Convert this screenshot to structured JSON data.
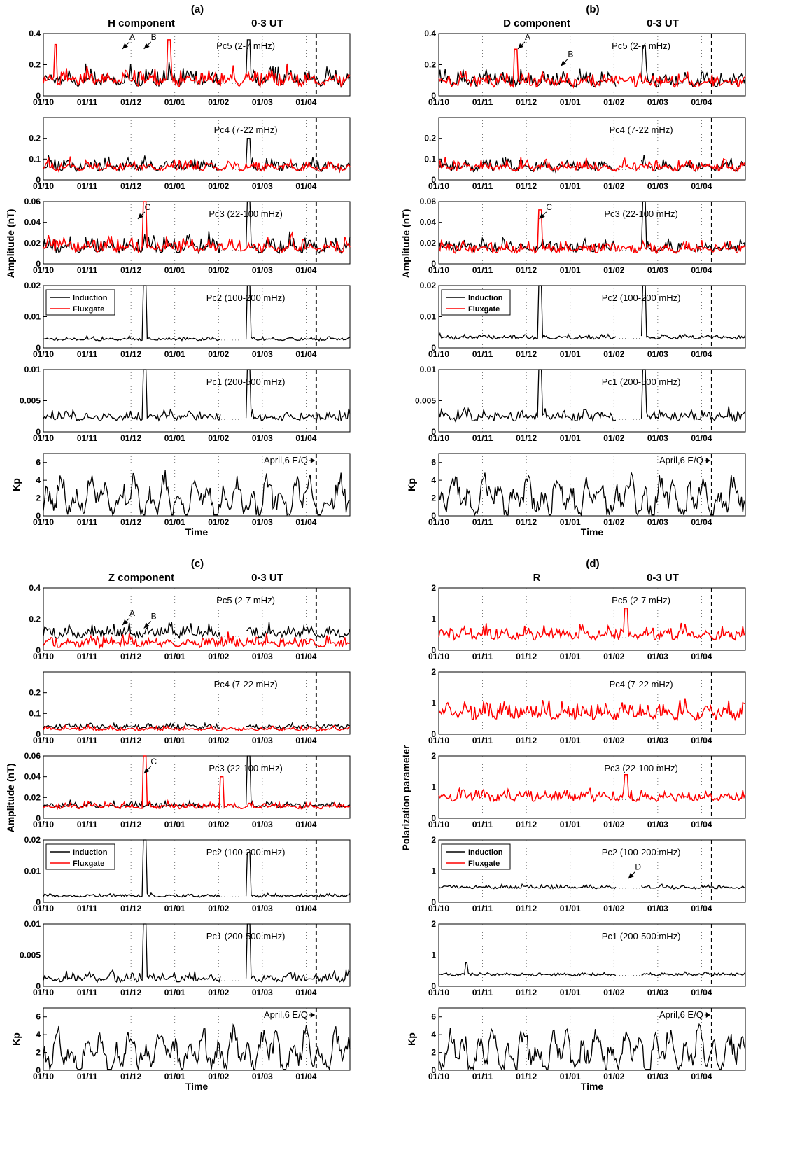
{
  "chart_data": {
    "type": "line",
    "dates": [
      "01/10",
      "01/11",
      "01/12",
      "01/01",
      "01/02",
      "01/03",
      "01/04"
    ],
    "legend": {
      "induction": "Induction",
      "fluxgate": "Fluxgate"
    },
    "colors": {
      "induction": "#000000",
      "fluxgate": "#ff0000"
    },
    "time_label": "Time",
    "eq_label": "April,6 E/Q",
    "panels": [
      {
        "letter": "(a)",
        "title": "H component",
        "ut": "0-3 UT",
        "amp_label": "Amplitude (nT)",
        "rows": [
          {
            "label": "Pc5 (2-7 mHz)",
            "ylim": [
              0,
              0.4
            ],
            "ticks": [
              "0",
              "0.2",
              "0.4"
            ],
            "tickvals": [
              0,
              0.2,
              0.4
            ],
            "base": 0.08,
            "var": 0.06,
            "flux": true,
            "fluxbase": 0.08,
            "peaks": [
              {
                "x": 0.04,
                "y": 0.33,
                "s": "f"
              },
              {
                "x": 0.41,
                "y": 0.36,
                "s": "f"
              },
              {
                "x": 0.67,
                "y": 0.36,
                "s": "b"
              }
            ],
            "ann": [
              {
                "t": "A",
                "x": 0.29,
                "y": 0.36
              },
              {
                "t": "B",
                "x": 0.36,
                "y": 0.36
              }
            ]
          },
          {
            "label": "Pc4 (7-22 mHz)",
            "ylim": [
              0,
              0.3
            ],
            "ticks": [
              "0",
              "0.1",
              "0.2"
            ],
            "tickvals": [
              0,
              0.1,
              0.2
            ],
            "base": 0.05,
            "var": 0.03,
            "flux": true,
            "fluxbase": 0.05,
            "peaks": [
              {
                "x": 0.67,
                "y": 0.2,
                "s": "b"
              }
            ],
            "ann": []
          },
          {
            "label": "Pc3 (22-100 mHz)",
            "ylim": [
              0,
              0.06
            ],
            "ticks": [
              "0",
              "0.02",
              "0.04",
              "0.06"
            ],
            "tickvals": [
              0,
              0.02,
              0.04,
              0.06
            ],
            "base": 0.013,
            "var": 0.008,
            "flux": true,
            "fluxbase": 0.013,
            "peaks": [
              {
                "x": 0.33,
                "y": 0.06,
                "s": "f"
              },
              {
                "x": 0.67,
                "y": 0.06,
                "s": "b"
              }
            ],
            "ann": [
              {
                "t": "C",
                "x": 0.34,
                "y": 0.052
              }
            ]
          },
          {
            "label": "Pc2 (100-200 mHz)",
            "ylim": [
              0,
              0.02
            ],
            "ticks": [
              "0",
              "0.01",
              "0.02"
            ],
            "tickvals": [
              0,
              0.01,
              0.02
            ],
            "base": 0.0025,
            "var": 0.0006,
            "flux": false,
            "fluxbase": 0,
            "legend": true,
            "peaks": [
              {
                "x": 0.33,
                "y": 0.02,
                "s": "b"
              },
              {
                "x": 0.67,
                "y": 0.02,
                "s": "b"
              }
            ],
            "ann": []
          },
          {
            "label": "Pc1 (200-500 mHz)",
            "ylim": [
              0,
              0.01
            ],
            "ticks": [
              "0",
              "0.005",
              "0.01"
            ],
            "tickvals": [
              0,
              0.005,
              0.01
            ],
            "base": 0.002,
            "var": 0.0008,
            "flux": false,
            "fluxbase": 0,
            "peaks": [
              {
                "x": 0.33,
                "y": 0.01,
                "s": "b"
              },
              {
                "x": 0.67,
                "y": 0.01,
                "s": "b"
              }
            ],
            "ann": []
          },
          {
            "label": "",
            "kp": true,
            "ylim": [
              0,
              7
            ],
            "ticks": [
              "0",
              "2",
              "4",
              "6"
            ],
            "tickvals": [
              0,
              2,
              4,
              6
            ],
            "base": 2,
            "var": 1.3,
            "flux": false,
            "fluxbase": 0,
            "peaks": [],
            "ann": []
          }
        ]
      },
      {
        "letter": "(b)",
        "title": "D component",
        "ut": "0-3 UT",
        "amp_label": "Amplitude (nT)",
        "rows": [
          {
            "label": "Pc5 (2-7 mHz)",
            "ylim": [
              0,
              0.4
            ],
            "ticks": [
              "0",
              "0.2",
              "0.4"
            ],
            "tickvals": [
              0,
              0.2,
              0.4
            ],
            "base": 0.07,
            "var": 0.05,
            "flux": true,
            "fluxbase": 0.07,
            "peaks": [
              {
                "x": 0.25,
                "y": 0.3,
                "s": "f"
              },
              {
                "x": 0.67,
                "y": 0.32,
                "s": "b"
              }
            ],
            "ann": [
              {
                "t": "A",
                "x": 0.29,
                "y": 0.36
              },
              {
                "t": "B",
                "x": 0.43,
                "y": 0.25
              }
            ]
          },
          {
            "label": "Pc4 (7-22 mHz)",
            "ylim": [
              0,
              0.3
            ],
            "ticks": [
              "0",
              "0.1",
              "0.2"
            ],
            "tickvals": [
              0,
              0.1,
              0.2
            ],
            "base": 0.05,
            "var": 0.03,
            "flux": true,
            "fluxbase": 0.05,
            "peaks": [],
            "ann": []
          },
          {
            "label": "Pc3 (22-100 mHz)",
            "ylim": [
              0,
              0.06
            ],
            "ticks": [
              "0",
              "0.02",
              "0.04",
              "0.06"
            ],
            "tickvals": [
              0,
              0.02,
              0.04,
              0.06
            ],
            "base": 0.013,
            "var": 0.006,
            "flux": true,
            "fluxbase": 0.012,
            "peaks": [
              {
                "x": 0.33,
                "y": 0.052,
                "s": "f"
              },
              {
                "x": 0.67,
                "y": 0.06,
                "s": "b"
              }
            ],
            "ann": [
              {
                "t": "C",
                "x": 0.36,
                "y": 0.052
              }
            ]
          },
          {
            "label": "Pc2 (100-200 mHz)",
            "ylim": [
              0,
              0.02
            ],
            "ticks": [
              "0",
              "0.01",
              "0.02"
            ],
            "tickvals": [
              0,
              0.01,
              0.02
            ],
            "base": 0.003,
            "var": 0.0007,
            "flux": false,
            "fluxbase": 0,
            "legend": true,
            "peaks": [
              {
                "x": 0.33,
                "y": 0.02,
                "s": "b"
              },
              {
                "x": 0.67,
                "y": 0.02,
                "s": "b"
              }
            ],
            "ann": []
          },
          {
            "label": "Pc1 (200-500 mHz)",
            "ylim": [
              0,
              0.01
            ],
            "ticks": [
              "0",
              "0.005",
              "0.01"
            ],
            "tickvals": [
              0,
              0.005,
              0.01
            ],
            "base": 0.002,
            "var": 0.001,
            "flux": false,
            "fluxbase": 0,
            "peaks": [
              {
                "x": 0.33,
                "y": 0.01,
                "s": "b"
              },
              {
                "x": 0.67,
                "y": 0.01,
                "s": "b"
              }
            ],
            "ann": []
          },
          {
            "label": "",
            "kp": true,
            "ylim": [
              0,
              7
            ],
            "ticks": [
              "0",
              "2",
              "4",
              "6"
            ],
            "tickvals": [
              0,
              2,
              4,
              6
            ],
            "base": 2,
            "var": 1.3,
            "flux": false,
            "fluxbase": 0,
            "peaks": [],
            "ann": []
          }
        ]
      },
      {
        "letter": "(c)",
        "title": "Z component",
        "ut": "0-3 UT",
        "amp_label": "Amplitude (nT)",
        "rows": [
          {
            "label": "Pc5 (2-7 mHz)",
            "ylim": [
              0,
              0.4
            ],
            "ticks": [
              "0",
              "0.2",
              "0.4"
            ],
            "tickvals": [
              0,
              0.2,
              0.4
            ],
            "base": 0.09,
            "var": 0.04,
            "flux": true,
            "fluxbase": 0.03,
            "peaks": [],
            "ann": [
              {
                "t": "A",
                "x": 0.29,
                "y": 0.22
              },
              {
                "t": "B",
                "x": 0.36,
                "y": 0.2
              }
            ]
          },
          {
            "label": "Pc4 (7-22 mHz)",
            "ylim": [
              0,
              0.3
            ],
            "ticks": [
              "0",
              "0.1",
              "0.2"
            ],
            "tickvals": [
              0,
              0.1,
              0.2
            ],
            "base": 0.03,
            "var": 0.012,
            "flux": true,
            "fluxbase": 0.02,
            "peaks": [],
            "ann": []
          },
          {
            "label": "Pc3 (22-100 mHz)",
            "ylim": [
              0,
              0.06
            ],
            "ticks": [
              "0",
              "0.02",
              "0.04",
              "0.06"
            ],
            "tickvals": [
              0,
              0.02,
              0.04,
              0.06
            ],
            "base": 0.011,
            "var": 0.003,
            "flux": true,
            "fluxbase": 0.01,
            "peaks": [
              {
                "x": 0.33,
                "y": 0.06,
                "s": "f"
              },
              {
                "x": 0.58,
                "y": 0.04,
                "s": "f"
              },
              {
                "x": 0.67,
                "y": 0.06,
                "s": "b"
              }
            ],
            "ann": [
              {
                "t": "C",
                "x": 0.36,
                "y": 0.052
              }
            ]
          },
          {
            "label": "Pc2 (100-200 mHz)",
            "ylim": [
              0,
              0.02
            ],
            "ticks": [
              "0",
              "0.01",
              "0.02"
            ],
            "tickvals": [
              0,
              0.01,
              0.02
            ],
            "base": 0.0018,
            "var": 0.0005,
            "flux": false,
            "fluxbase": 0,
            "legend": true,
            "peaks": [
              {
                "x": 0.33,
                "y": 0.02,
                "s": "b"
              },
              {
                "x": 0.67,
                "y": 0.016,
                "s": "b"
              }
            ],
            "ann": []
          },
          {
            "label": "Pc1 (200-500 mHz)",
            "ylim": [
              0,
              0.01
            ],
            "ticks": [
              "0",
              "0.005",
              "0.01"
            ],
            "tickvals": [
              0,
              0.005,
              0.01
            ],
            "base": 0.0009,
            "var": 0.0008,
            "flux": false,
            "fluxbase": 0,
            "peaks": [
              {
                "x": 0.33,
                "y": 0.01,
                "s": "b"
              },
              {
                "x": 0.67,
                "y": 0.01,
                "s": "b"
              }
            ],
            "ann": []
          },
          {
            "label": "",
            "kp": true,
            "ylim": [
              0,
              7
            ],
            "ticks": [
              "0",
              "2",
              "4",
              "6"
            ],
            "tickvals": [
              0,
              2,
              4,
              6
            ],
            "base": 2,
            "var": 1.3,
            "flux": false,
            "fluxbase": 0,
            "peaks": [],
            "ann": []
          }
        ]
      },
      {
        "letter": "(d)",
        "title": "R",
        "ut": "0-3 UT",
        "amp_label": "Polarization parameter",
        "rows": [
          {
            "label": "Pc5 (2-7 mHz)",
            "ylim": [
              0,
              2
            ],
            "ticks": [
              "0",
              "1",
              "2"
            ],
            "tickvals": [
              0,
              1,
              2
            ],
            "base": 0.4,
            "var": 0.22,
            "flux": true,
            "fluxbase": 0.4,
            "fluxonly": true,
            "peaks": [
              {
                "x": 0.61,
                "y": 1.35,
                "s": "f"
              }
            ],
            "ann": []
          },
          {
            "label": "Pc4 (7-22 mHz)",
            "ylim": [
              0,
              2
            ],
            "ticks": [
              "0",
              "1",
              "2"
            ],
            "tickvals": [
              0,
              1,
              2
            ],
            "base": 0.55,
            "var": 0.28,
            "flux": true,
            "fluxbase": 0.55,
            "fluxonly": true,
            "peaks": [],
            "ann": []
          },
          {
            "label": "Pc3 (22-100 mHz)",
            "ylim": [
              0,
              2
            ],
            "ticks": [
              "0",
              "1",
              "2"
            ],
            "tickvals": [
              0,
              1,
              2
            ],
            "base": 0.6,
            "var": 0.18,
            "flux": true,
            "fluxbase": 0.6,
            "fluxonly": true,
            "peaks": [
              {
                "x": 0.61,
                "y": 1.4,
                "s": "f"
              }
            ],
            "ann": []
          },
          {
            "label": "Pc2 (100-200 mHz)",
            "ylim": [
              0,
              2
            ],
            "ticks": [
              "0",
              "1",
              "2"
            ],
            "tickvals": [
              0,
              1,
              2
            ],
            "base": 0.45,
            "var": 0.06,
            "flux": false,
            "fluxbase": 0,
            "legend": true,
            "peaks": [
              {
                "x": 0.61,
                "y": 0.9,
                "s": "b"
              }
            ],
            "ann": [
              {
                "t": "D",
                "x": 0.65,
                "y": 1.05
              }
            ]
          },
          {
            "label": "Pc1 (200-500 mHz)",
            "ylim": [
              0,
              2
            ],
            "ticks": [
              "0",
              "1",
              "2"
            ],
            "tickvals": [
              0,
              1,
              2
            ],
            "base": 0.35,
            "var": 0.05,
            "flux": false,
            "fluxbase": 0,
            "peaks": [
              {
                "x": 0.61,
                "y": 0.9,
                "s": "b"
              },
              {
                "x": 0.09,
                "y": 0.75,
                "s": "b"
              }
            ],
            "ann": []
          },
          {
            "label": "",
            "kp": true,
            "ylim": [
              0,
              7
            ],
            "ticks": [
              "0",
              "2",
              "4",
              "6"
            ],
            "tickvals": [
              0,
              2,
              4,
              6
            ],
            "base": 2,
            "var": 1.3,
            "flux": false,
            "fluxbase": 0,
            "peaks": [],
            "ann": []
          }
        ]
      }
    ]
  }
}
